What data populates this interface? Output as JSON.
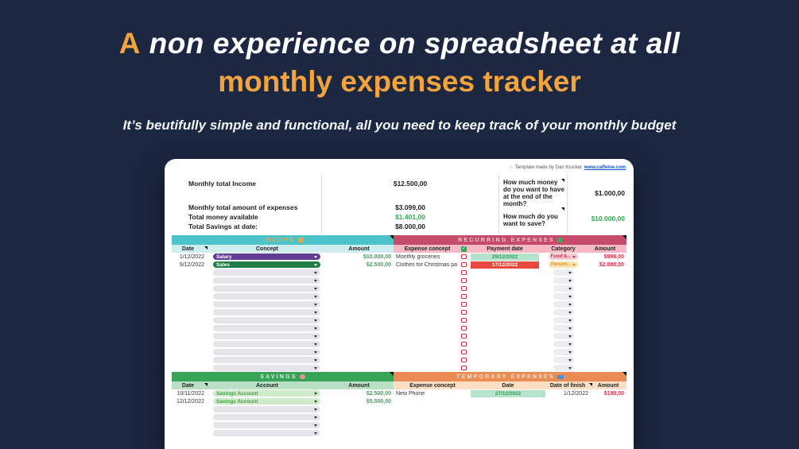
{
  "hero": {
    "title_accent": "A",
    "title_rest": " non experience on spreadsheet at all",
    "title_line2": "monthly expenses tracker",
    "subtitle": "It’s beutifully simple and functional, all you need to keep track of your monthly budget"
  },
  "attribution": {
    "warn_icon": "⚠",
    "text": "Template made by Dan Krucker",
    "link": "www.caffeine.com"
  },
  "summary": {
    "left": [
      {
        "label": "Monthly total Income",
        "value": "$12.500,00"
      },
      {
        "label": "Monthly total amount of expenses",
        "value": "$3.099,00"
      },
      {
        "label": "Total money available",
        "value": "$1.401,00"
      },
      {
        "label": "Total Savings at date:",
        "value": "$8.000,00"
      }
    ],
    "right": [
      {
        "label": "How much money do you want to have at the end of the month?",
        "value": "$1.000,00"
      },
      {
        "label": "How much do you want to save?",
        "value": "$10.000,00"
      }
    ]
  },
  "income": {
    "title": "INCOME",
    "icon": "money-bag",
    "columns": {
      "date": "Date",
      "concept": "Concept",
      "amount": "Amount"
    },
    "rows": [
      {
        "date": "1/12/2022",
        "concept": "Salary",
        "amount": "$10.000,00"
      },
      {
        "date": "9/12/2022",
        "concept": "Sales",
        "amount": "$2.500,00"
      }
    ],
    "empty_rows": 13
  },
  "recurring": {
    "title": "RECURRING EXPENSES",
    "icon": "money-with-wings",
    "columns": {
      "concept": "Expense concept",
      "date": "Payment date",
      "category": "Category",
      "amount": "Amount"
    },
    "header_checkbox": "✓",
    "rows": [
      {
        "concept": "Monthly groceries",
        "date": "29/12/2022",
        "date_state": "green",
        "category": "Food &...",
        "amount": "$999,00"
      },
      {
        "concept": "Clothes for Christmas pa",
        "date": "17/12/2022",
        "date_state": "red",
        "category": "Person...",
        "amount": "$2.000,00"
      }
    ],
    "empty_rows": 13
  },
  "savings": {
    "title": "SAVINGS",
    "icon": "piggy-bank",
    "columns": {
      "date": "Date",
      "account": "Account",
      "amount": "Amount"
    },
    "rows": [
      {
        "date": "10/11/2022",
        "account": "Savings Account",
        "amount": "$2.500,00"
      },
      {
        "date": "12/12/2022",
        "account": "Savings Account",
        "amount": "$5.500,00"
      }
    ],
    "empty_rows": 4
  },
  "temporary": {
    "title": "TEMPORARY EXPENSES",
    "icon": "credit-card",
    "columns": {
      "concept": "Expense concept",
      "date": "Date",
      "finish": "Date of finish",
      "amount": "Amount"
    },
    "rows": [
      {
        "concept": "New Phone",
        "date": "27/12/2022",
        "date_state": "green",
        "finish": "1/12/2022",
        "amount": "$100,00"
      }
    ]
  },
  "colors": {
    "background": "#1c2742",
    "accent_orange": "#f2a33c",
    "income_bar": "#4cc3cb",
    "recurring_bar": "#c64a6a",
    "savings_bar": "#36a356",
    "temporary_bar": "#ec8c55",
    "positive_green": "#34a853",
    "negative_red": "#d0314d",
    "purple_pill": "#613d97",
    "dark_green_pill": "#1e7e45"
  }
}
